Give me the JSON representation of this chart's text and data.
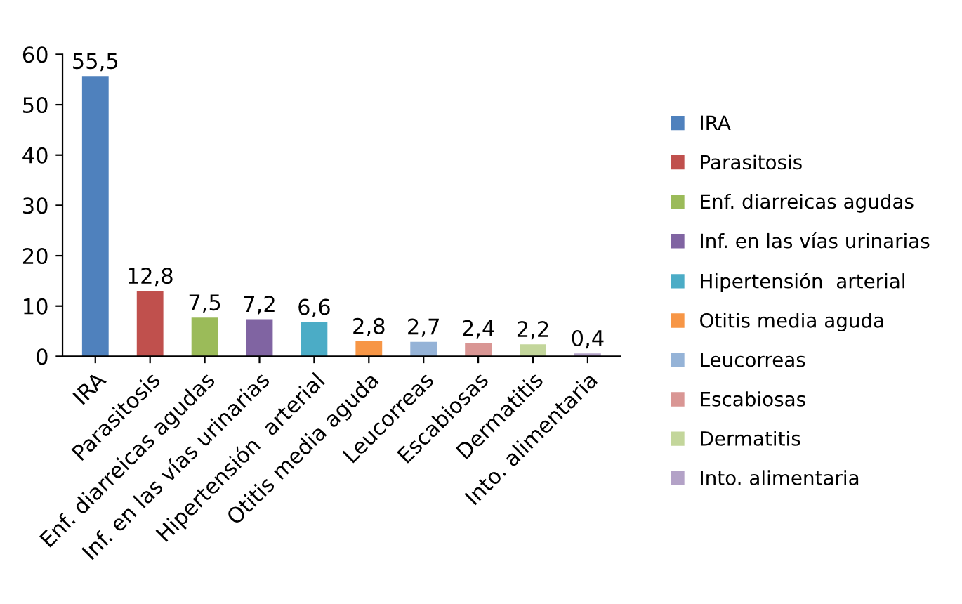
{
  "chart_data": {
    "type": "bar",
    "categories": [
      "IRA",
      "Parasitosis",
      "Enf. diarreicas agudas",
      "Inf. en las vías urinarias",
      "Hipertensión  arterial",
      "Otitis media aguda",
      "Leucorreas",
      "Escabiosas",
      "Dermatitis",
      "Into. alimentaria"
    ],
    "series": [
      {
        "name": "IRA",
        "color": "#4f81bd",
        "values": [
          55.5,
          null,
          null,
          null,
          null,
          null,
          null,
          null,
          null,
          null
        ],
        "value_labels": [
          "55,5",
          null,
          null,
          null,
          null,
          null,
          null,
          null,
          null,
          null
        ]
      },
      {
        "name": "Parasitosis",
        "color": "#c0504d",
        "values": [
          null,
          12.8,
          null,
          null,
          null,
          null,
          null,
          null,
          null,
          null
        ],
        "value_labels": [
          null,
          "12,8",
          null,
          null,
          null,
          null,
          null,
          null,
          null,
          null
        ]
      },
      {
        "name": "Enf. diarreicas agudas",
        "color": "#9bbb59",
        "values": [
          null,
          null,
          7.5,
          null,
          null,
          null,
          null,
          null,
          null,
          null
        ],
        "value_labels": [
          null,
          null,
          "7,5",
          null,
          null,
          null,
          null,
          null,
          null,
          null
        ]
      },
      {
        "name": "Inf. en las vías urinarias",
        "color": "#8064a2",
        "values": [
          null,
          null,
          null,
          7.2,
          null,
          null,
          null,
          null,
          null,
          null
        ],
        "value_labels": [
          null,
          null,
          null,
          "7,2",
          null,
          null,
          null,
          null,
          null,
          null
        ]
      },
      {
        "name": "Hipertensión  arterial",
        "color": "#4bacc6",
        "values": [
          null,
          null,
          null,
          null,
          6.6,
          null,
          null,
          null,
          null,
          null
        ],
        "value_labels": [
          null,
          null,
          null,
          null,
          "6,6",
          null,
          null,
          null,
          null,
          null
        ]
      },
      {
        "name": "Otitis media aguda",
        "color": "#f79646",
        "values": [
          null,
          null,
          null,
          null,
          null,
          2.8,
          null,
          null,
          null,
          null
        ],
        "value_labels": [
          null,
          null,
          null,
          null,
          null,
          "2,8",
          null,
          null,
          null,
          null
        ]
      },
      {
        "name": "Leucorreas",
        "color": "#95b3d7",
        "values": [
          null,
          null,
          null,
          null,
          null,
          null,
          2.7,
          null,
          null,
          null
        ],
        "value_labels": [
          null,
          null,
          null,
          null,
          null,
          null,
          "2,7",
          null,
          null,
          null
        ]
      },
      {
        "name": "Escabiosas",
        "color": "#d99694",
        "values": [
          null,
          null,
          null,
          null,
          null,
          null,
          null,
          2.4,
          null,
          null
        ],
        "value_labels": [
          null,
          null,
          null,
          null,
          null,
          null,
          null,
          "2,4",
          null,
          null
        ]
      },
      {
        "name": "Dermatitis",
        "color": "#c3d69b",
        "values": [
          null,
          null,
          null,
          null,
          null,
          null,
          null,
          null,
          2.2,
          null
        ],
        "value_labels": [
          null,
          null,
          null,
          null,
          null,
          null,
          null,
          null,
          "2,2",
          null
        ]
      },
      {
        "name": "Into. alimentaria",
        "color": "#b3a2c7",
        "values": [
          null,
          null,
          null,
          null,
          null,
          null,
          null,
          null,
          null,
          0.4
        ],
        "value_labels": [
          null,
          null,
          null,
          null,
          null,
          null,
          null,
          null,
          null,
          "0,4"
        ]
      }
    ],
    "ylim": [
      0,
      60
    ],
    "yticks": [
      0,
      10,
      20,
      30,
      40,
      50,
      60
    ],
    "grid": false,
    "legend": "right"
  }
}
